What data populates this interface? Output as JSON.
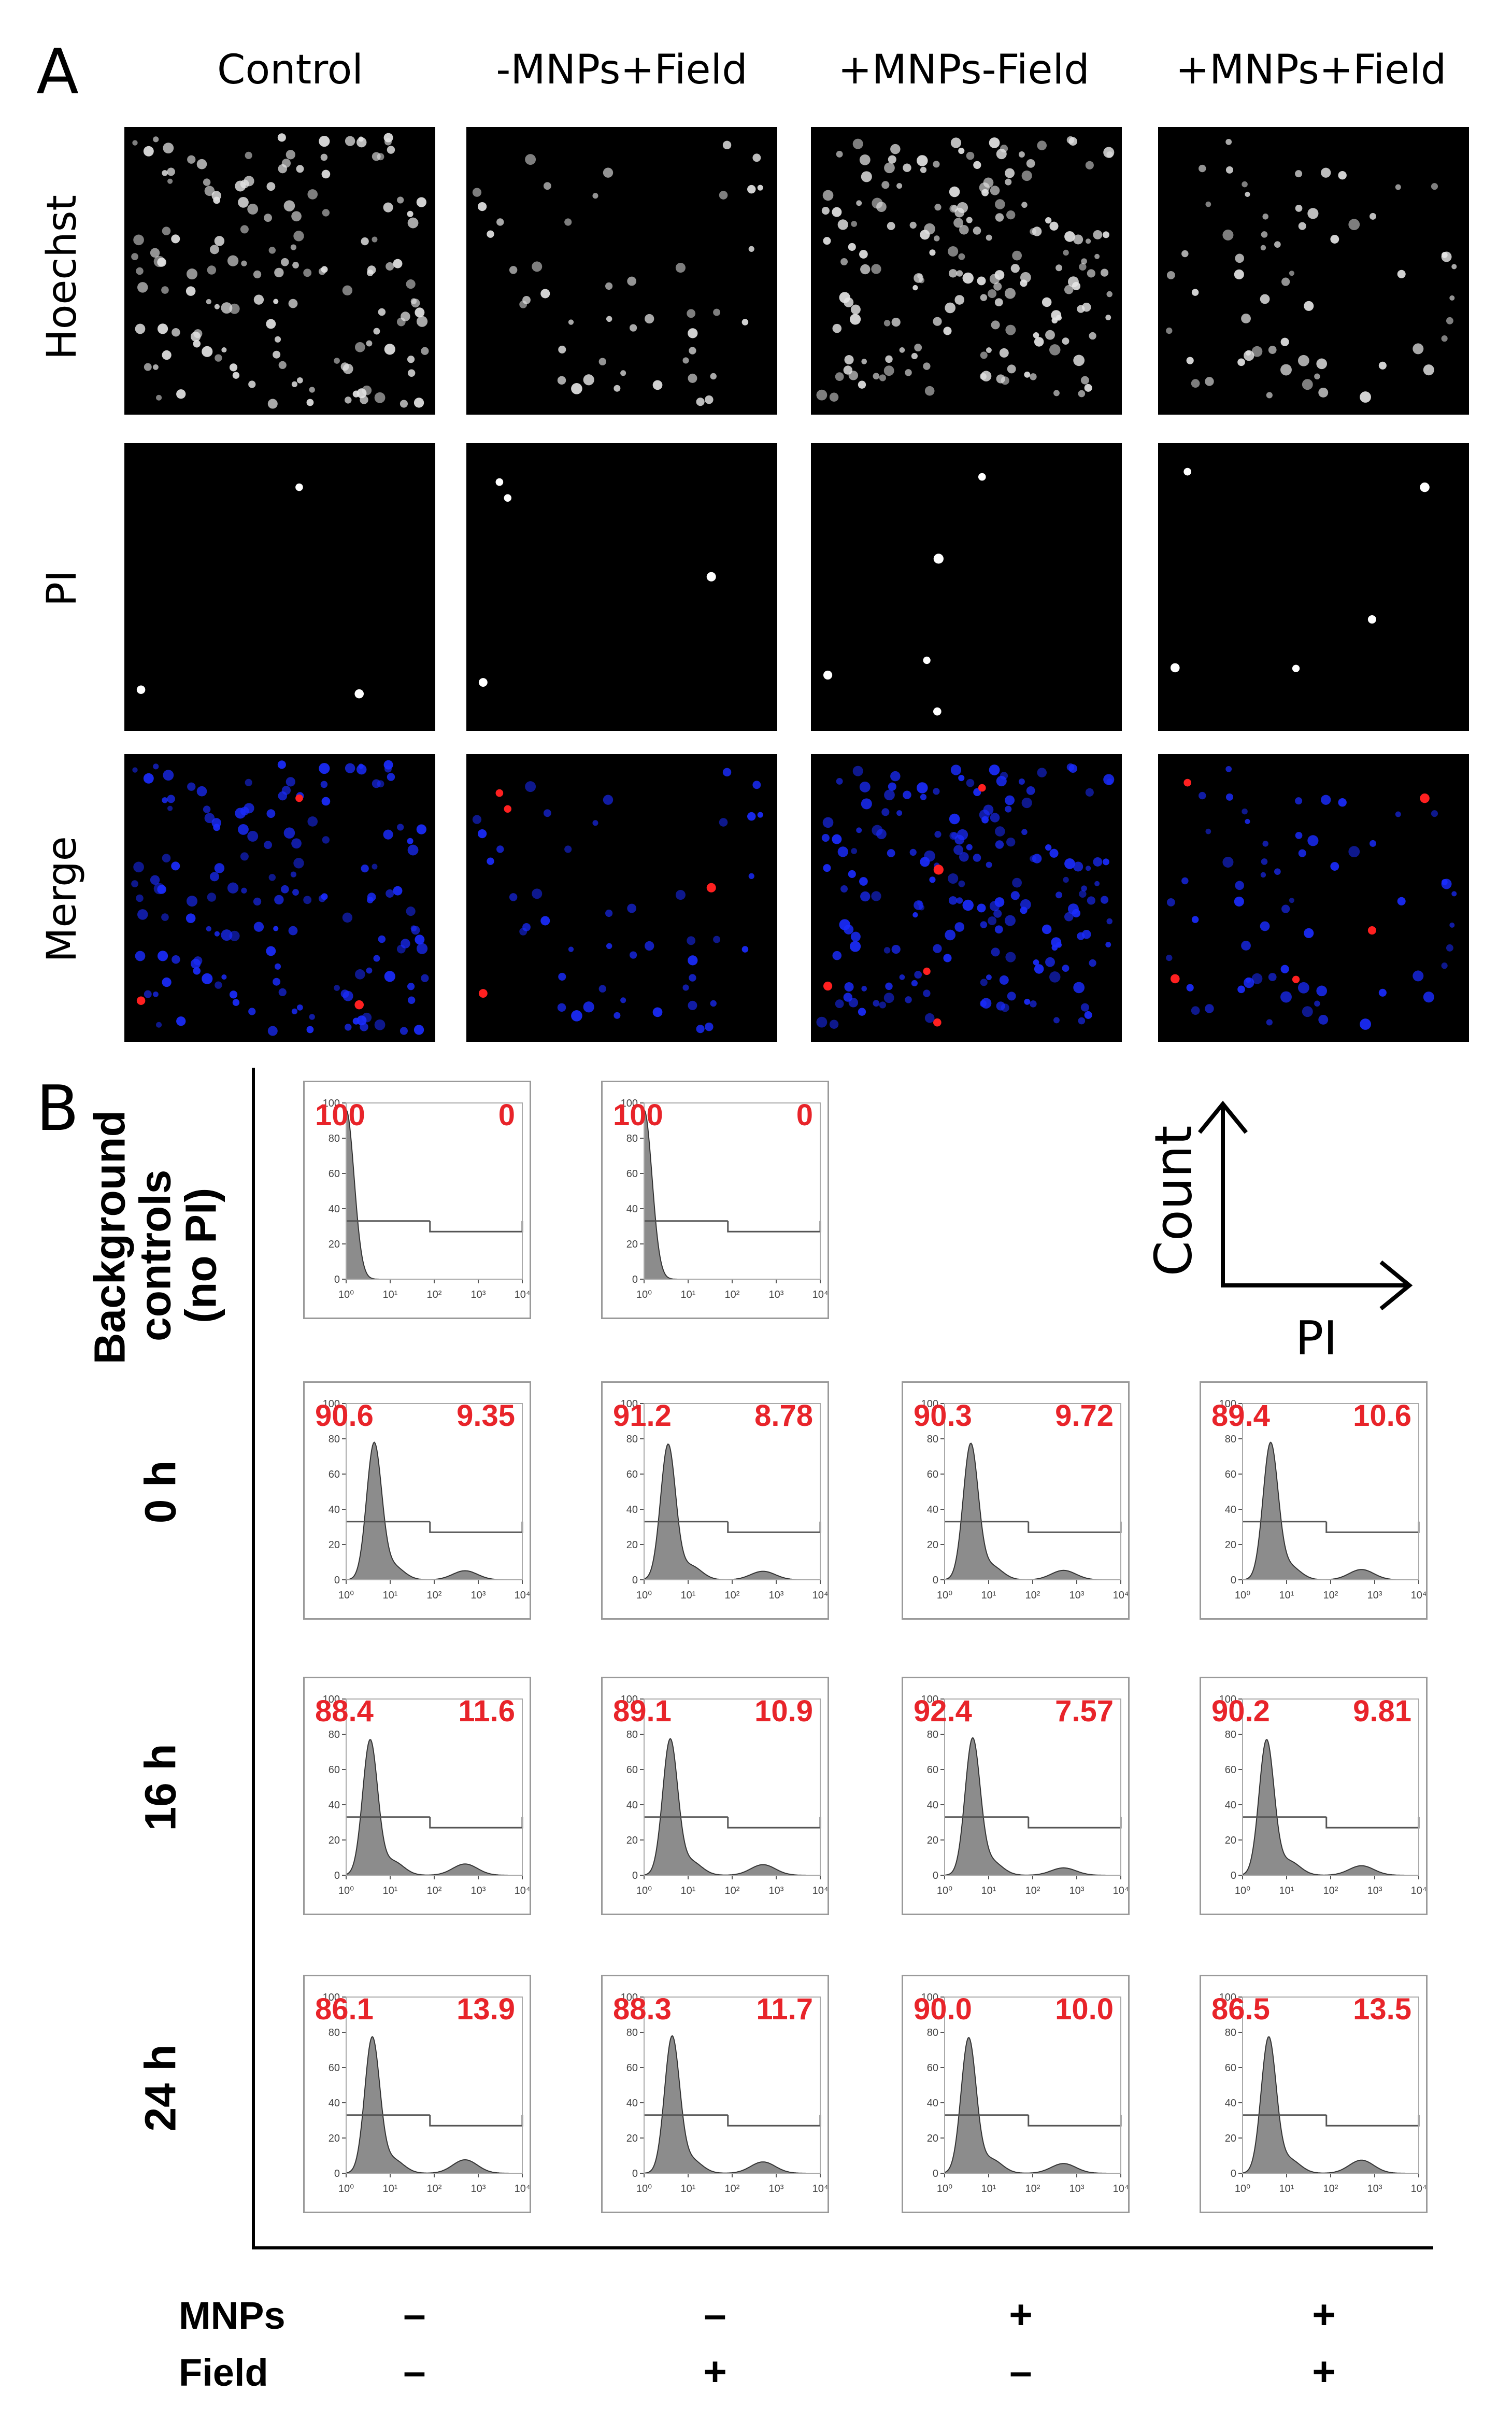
{
  "panel_a": {
    "letter": "A",
    "columns": [
      "Control",
      "-MNPs+Field",
      "+MNPs-Field",
      "+MNPs+Field"
    ],
    "rows": [
      "Hoechst",
      "PI",
      "Merge"
    ]
  },
  "panel_b": {
    "letter": "B",
    "row_labels": [
      "Background controls (no PI)",
      "0 h",
      "16 h",
      "24 h"
    ],
    "axis_hint": {
      "y": "Count",
      "x": "PI"
    },
    "y_ticks": [
      "100",
      "80",
      "60",
      "40",
      "20",
      "0"
    ],
    "x_ticks": [
      "10⁰",
      "10¹",
      "10²",
      "10³",
      "10⁴"
    ]
  },
  "chart_data": {
    "type": "histogram-grid",
    "x_scale": "log",
    "x_range": [
      1,
      10000
    ],
    "y_range": [
      0,
      100
    ],
    "cells": [
      {
        "row": "Background controls (no PI)",
        "col": 0,
        "left": "100",
        "right": "0"
      },
      {
        "row": "Background controls (no PI)",
        "col": 1,
        "left": "100",
        "right": "0"
      },
      {
        "row": "0 h",
        "col": 0,
        "left": "90.6",
        "right": "9.35"
      },
      {
        "row": "0 h",
        "col": 1,
        "left": "91.2",
        "right": "8.78"
      },
      {
        "row": "0 h",
        "col": 2,
        "left": "90.3",
        "right": "9.72"
      },
      {
        "row": "0 h",
        "col": 3,
        "left": "89.4",
        "right": "10.6"
      },
      {
        "row": "16 h",
        "col": 0,
        "left": "88.4",
        "right": "11.6"
      },
      {
        "row": "16 h",
        "col": 1,
        "left": "89.1",
        "right": "10.9"
      },
      {
        "row": "16 h",
        "col": 2,
        "left": "92.4",
        "right": "7.57"
      },
      {
        "row": "16 h",
        "col": 3,
        "left": "90.2",
        "right": "9.81"
      },
      {
        "row": "24 h",
        "col": 0,
        "left": "86.1",
        "right": "13.9"
      },
      {
        "row": "24 h",
        "col": 1,
        "left": "88.3",
        "right": "11.7"
      },
      {
        "row": "24 h",
        "col": 2,
        "left": "90.0",
        "right": "10.0"
      },
      {
        "row": "24 h",
        "col": 3,
        "left": "86.5",
        "right": "13.5"
      }
    ]
  },
  "conditions": {
    "labels": [
      "MNPs",
      "Field"
    ],
    "mnps": [
      "–",
      "–",
      "+",
      "+"
    ],
    "field": [
      "–",
      "+",
      "–",
      "+"
    ]
  },
  "colors": {
    "percent_text": "#e8242a",
    "hoechst": "#e6e6e6",
    "pi": "#ffffff",
    "merge_blue": "#1a2cff",
    "merge_red": "#ff2020",
    "histogram_fill": "#8c8c8c"
  }
}
